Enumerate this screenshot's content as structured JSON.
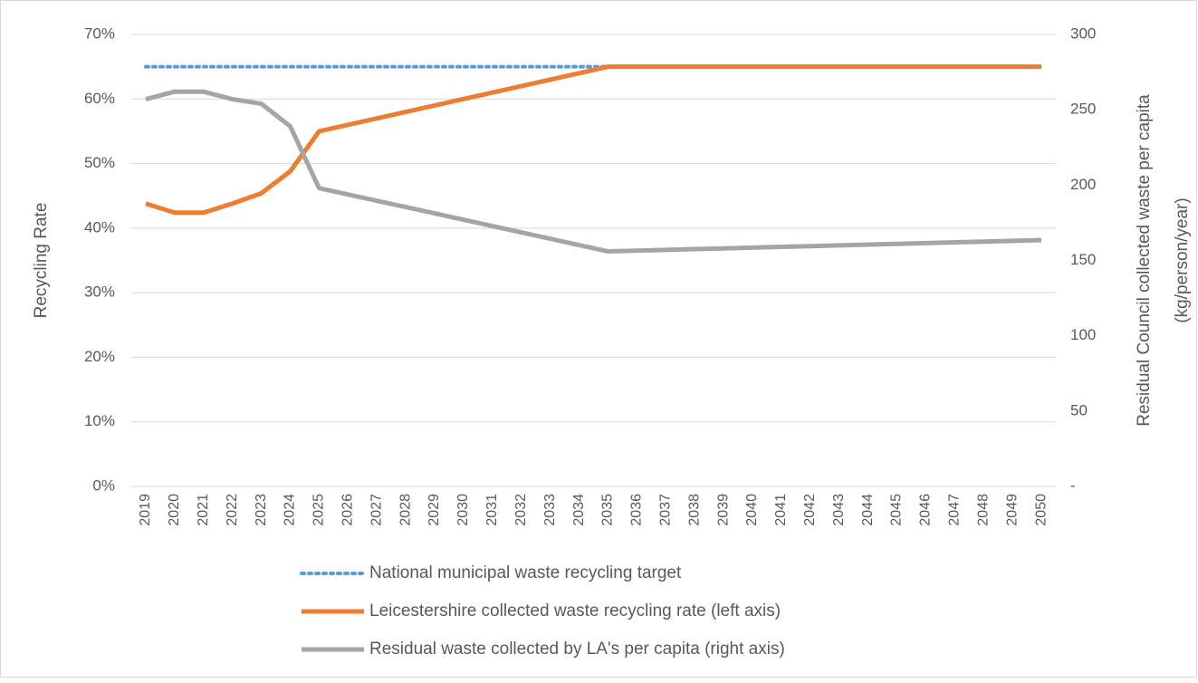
{
  "chart_data": {
    "type": "line",
    "ylabel": "Recycling Rate",
    "y2label": [
      "Residual Council collected waste per capita",
      "(kg/person/year)"
    ],
    "categories": [
      "2019",
      "2020",
      "2021",
      "2022",
      "2023",
      "2024",
      "2025",
      "2026",
      "2027",
      "2028",
      "2029",
      "2030",
      "2031",
      "2032",
      "2033",
      "2034",
      "2035",
      "2036",
      "2037",
      "2038",
      "2039",
      "2040",
      "2041",
      "2042",
      "2043",
      "2044",
      "2045",
      "2046",
      "2047",
      "2048",
      "2049",
      "2050"
    ],
    "ylim": [
      0,
      70
    ],
    "yticks": [
      {
        "value": 0,
        "label": "0%"
      },
      {
        "value": 10,
        "label": "10%"
      },
      {
        "value": 20,
        "label": "20%"
      },
      {
        "value": 30,
        "label": "30%"
      },
      {
        "value": 40,
        "label": "40%"
      },
      {
        "value": 50,
        "label": "50%"
      },
      {
        "value": 60,
        "label": "60%"
      },
      {
        "value": 70,
        "label": "70%"
      }
    ],
    "y2lim": [
      0,
      300
    ],
    "y2ticks": [
      {
        "value": 0,
        "label": "-"
      },
      50,
      100,
      150,
      200,
      250,
      300
    ],
    "grid": true,
    "legend": "bottom",
    "series": [
      {
        "name": "National municipal waste recycling target",
        "color": "#5b9bd5",
        "line_style": "dotted",
        "values": [
          65,
          65,
          65,
          65,
          65,
          65,
          65,
          65,
          65,
          65,
          65,
          65,
          65,
          65,
          65,
          65,
          65,
          65,
          65,
          65,
          65,
          65,
          65,
          65,
          65,
          65,
          65,
          65,
          65,
          65,
          65,
          65
        ]
      },
      {
        "name": "Leicestershire collected waste recycling rate (left axis)",
        "color": "#ed7d31",
        "line_style": "solid",
        "values": [
          43.8,
          42.4,
          42.4,
          43.8,
          45.4,
          48.8,
          55,
          56,
          57,
          58,
          59,
          60,
          61,
          62,
          63,
          64,
          65,
          65,
          65,
          65,
          65,
          65,
          65,
          65,
          65,
          65,
          65,
          65,
          65,
          65,
          65,
          65
        ]
      },
      {
        "name": "Residual waste collected by LA's per capita (right axis)",
        "color": "#a5a5a5",
        "line_style": "solid",
        "axis": "y2",
        "values": [
          257,
          262,
          262,
          257,
          254,
          239,
          198,
          193.8,
          189.6,
          185.4,
          181.2,
          177,
          172.8,
          168.6,
          164.4,
          160.2,
          156,
          156.5,
          157,
          157.5,
          158,
          158.5,
          159,
          159.5,
          160,
          160.5,
          161,
          161.5,
          162,
          162.5,
          163,
          163.5
        ]
      }
    ]
  }
}
